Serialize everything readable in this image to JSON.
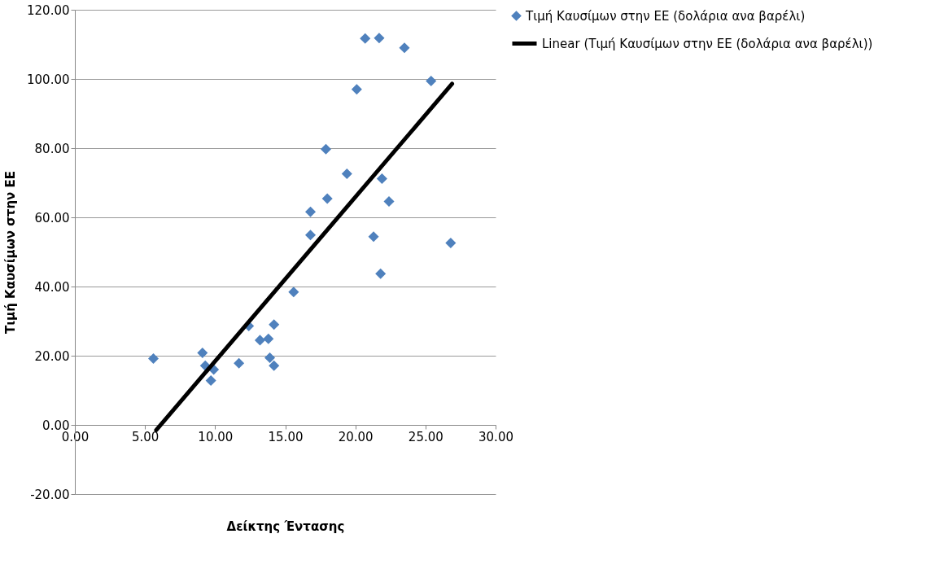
{
  "chart_data": {
    "type": "scatter",
    "xlabel": "Δείκτης Έντασης",
    "ylabel": "Τιμή Καυσίμων στην ΕΕ",
    "legend": "right",
    "grid": "y",
    "marker": "diamond",
    "xlim": [
      0,
      30
    ],
    "ylim": [
      -20,
      120
    ],
    "xticks": [
      {
        "value": 0,
        "label": "0.00"
      },
      {
        "value": 5,
        "label": "5.00"
      },
      {
        "value": 10,
        "label": "10.00"
      },
      {
        "value": 15,
        "label": "15.00"
      },
      {
        "value": 20,
        "label": "20.00"
      },
      {
        "value": 25,
        "label": "25.00"
      },
      {
        "value": 30,
        "label": "30.00"
      }
    ],
    "yticks": [
      {
        "value": -20,
        "label": "-20.00"
      },
      {
        "value": 0,
        "label": "0.00"
      },
      {
        "value": 20,
        "label": "20.00"
      },
      {
        "value": 40,
        "label": "40.00"
      },
      {
        "value": 60,
        "label": "60.00"
      },
      {
        "value": 80,
        "label": "80.00"
      },
      {
        "value": 100,
        "label": "100.00"
      },
      {
        "value": 120,
        "label": "120.00"
      }
    ],
    "series": [
      {
        "name": "Τιμή Καυσίμων στην ΕΕ (δολάρια ανα βαρέλι)",
        "color": "#4f81bd",
        "x": [
          5.6,
          9.1,
          9.3,
          9.9,
          9.7,
          11.7,
          12.4,
          13.2,
          13.8,
          13.9,
          14.2,
          14.2,
          15.6,
          16.8,
          16.8,
          17.9,
          18.0,
          19.4,
          20.1,
          20.7,
          21.7,
          23.5,
          25.4,
          21.9,
          22.4,
          21.3,
          26.8,
          21.8
        ],
        "values": [
          19.2,
          20.8,
          17.1,
          16.0,
          12.8,
          17.8,
          28.6,
          24.5,
          24.9,
          19.4,
          17.1,
          29.0,
          38.4,
          54.9,
          61.6,
          79.7,
          65.4,
          72.6,
          97.0,
          111.7,
          111.8,
          109.0,
          99.4,
          71.2,
          64.6,
          54.4,
          52.6,
          43.7
        ]
      },
      {
        "name": "Linear (Τιμή Καυσίμων στην ΕΕ (δολάρια ανα βαρέλι))",
        "color": "#000000",
        "type": "line",
        "line_style": "solid",
        "marker": "none",
        "x": [
          5.8,
          26.9
        ],
        "values": [
          -1.5,
          98.6
        ]
      }
    ]
  }
}
